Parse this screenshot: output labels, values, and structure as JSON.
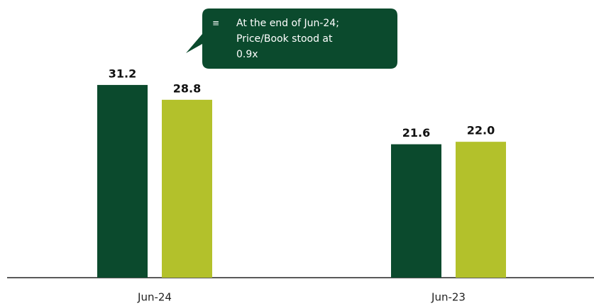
{
  "chart_data": {
    "type": "bar",
    "categories": [
      "Jun-24",
      "Jun-23"
    ],
    "series": [
      {
        "color": "#0b4a2d",
        "values": [
          31.2,
          21.6
        ]
      },
      {
        "color": "#b3c12b",
        "values": [
          28.8,
          22
        ],
        "value_labels": [
          "28.8",
          "22.0"
        ]
      }
    ],
    "ylim": [
      0,
      40
    ],
    "annotation": {
      "icon": "≡",
      "lines": [
        "At the end of Jun-24;",
        "Price/Book stood at",
        "0.9x"
      ]
    }
  }
}
